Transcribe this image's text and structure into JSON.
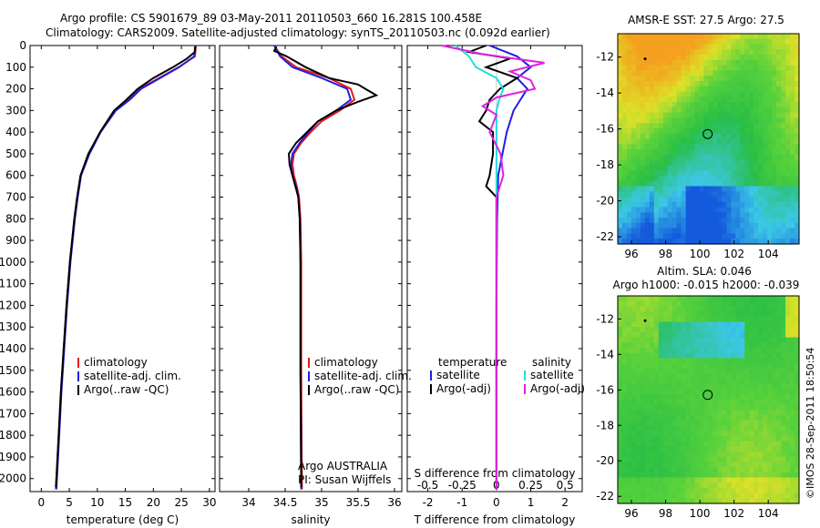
{
  "header": {
    "line1": "Argo profile: CS 5901679_89 03-May-2011 20110503_660 16.281S 100.458E",
    "line2": "Climatology: CARS2009. Satellite-adjusted climatology: synTS_20110503.nc (0.092d earlier)"
  },
  "colors": {
    "climatology": "#e41a1c",
    "satellite": "#1f1fe0",
    "argo": "#000000",
    "sat_salinity": "#22dddd",
    "argo_salinity": "#e020e0"
  },
  "chart_data": [
    {
      "type": "line",
      "id": "temperature",
      "xlabel": "temperature (deg C)",
      "xlim": [
        -2,
        31
      ],
      "ylim": [
        2060,
        0
      ],
      "xticks": [
        0,
        5,
        10,
        15,
        20,
        25,
        30
      ],
      "yticks": [
        0,
        100,
        200,
        300,
        400,
        500,
        600,
        700,
        800,
        900,
        1000,
        1100,
        1200,
        1300,
        1400,
        1500,
        1600,
        1700,
        1800,
        1900,
        2000
      ],
      "legend": [
        "climatology",
        "satellite-adj. clim.",
        "Argo(..raw -QC)"
      ],
      "series": [
        {
          "name": "climatology",
          "depth": [
            0,
            50,
            100,
            150,
            200,
            250,
            300,
            400,
            500,
            600,
            700,
            800,
            1000,
            1200,
            1400,
            1600,
            1800,
            2000,
            2050
          ],
          "values": [
            27.6,
            27.4,
            24.5,
            21.0,
            17.5,
            15.5,
            13.0,
            10.5,
            8.5,
            7.0,
            6.4,
            5.9,
            5.1,
            4.5,
            4.0,
            3.5,
            3.1,
            2.7,
            2.6
          ]
        },
        {
          "name": "satellite-adj. clim.",
          "depth": [
            0,
            50,
            100,
            150,
            200,
            250,
            300,
            400,
            500,
            600,
            700,
            800,
            1000,
            1200,
            1400,
            1600,
            1800,
            2000,
            2050
          ],
          "values": [
            27.5,
            27.3,
            24.6,
            21.2,
            17.8,
            15.8,
            13.3,
            10.6,
            8.6,
            7.1,
            6.5,
            6.0,
            5.2,
            4.6,
            4.1,
            3.6,
            3.2,
            2.8,
            2.7
          ]
        },
        {
          "name": "Argo(..raw -QC)",
          "depth": [
            5,
            30,
            60,
            100,
            150,
            200,
            250,
            300,
            400,
            500,
            600,
            700,
            800,
            1000,
            1200,
            1400,
            1600,
            1800,
            2000,
            2040
          ],
          "values": [
            27.4,
            27.4,
            26.0,
            23.5,
            20.0,
            17.2,
            15.2,
            13.0,
            10.5,
            8.4,
            7.0,
            6.4,
            5.9,
            5.1,
            4.5,
            4.0,
            3.5,
            3.1,
            2.7,
            2.6
          ]
        }
      ]
    },
    {
      "type": "line",
      "id": "salinity",
      "xlabel": "salinity",
      "xlim": [
        33.6,
        36.1
      ],
      "ylim": [
        2060,
        0
      ],
      "xticks": [
        34,
        34.5,
        35,
        35.5,
        36
      ],
      "legend": [
        "climatology",
        "satellite-adj. clim.",
        "Argo(..raw -QC)"
      ],
      "series": [
        {
          "name": "climatology",
          "depth": [
            0,
            50,
            100,
            150,
            200,
            250,
            300,
            350,
            400,
            450,
            500,
            550,
            600,
            650,
            700,
            800,
            1000,
            1500,
            2050
          ],
          "values": [
            34.35,
            34.45,
            34.65,
            35.1,
            35.4,
            35.45,
            35.25,
            35.0,
            34.85,
            34.72,
            34.62,
            34.6,
            34.62,
            34.66,
            34.69,
            34.71,
            34.72,
            34.72,
            34.73
          ]
        },
        {
          "name": "satellite-adj. clim.",
          "depth": [
            0,
            50,
            100,
            150,
            200,
            250,
            300,
            350,
            400,
            450,
            500,
            550,
            600,
            650,
            700,
            800,
            1000,
            1500,
            2050
          ],
          "values": [
            34.35,
            34.43,
            34.6,
            35.0,
            35.35,
            35.4,
            35.2,
            34.95,
            34.82,
            34.7,
            34.6,
            34.58,
            34.6,
            34.65,
            34.68,
            34.7,
            34.71,
            34.71,
            34.72
          ]
        },
        {
          "name": "Argo(..raw -QC)",
          "depth": [
            5,
            25,
            50,
            100,
            150,
            180,
            200,
            230,
            260,
            300,
            350,
            400,
            450,
            500,
            550,
            600,
            650,
            700,
            800,
            1000,
            1500,
            2040
          ],
          "values": [
            34.38,
            34.35,
            34.52,
            34.78,
            35.1,
            35.5,
            35.6,
            35.75,
            35.5,
            35.2,
            34.95,
            34.8,
            34.65,
            34.55,
            34.56,
            34.6,
            34.64,
            34.68,
            34.7,
            34.71,
            34.71,
            34.72
          ]
        }
      ],
      "annotation": [
        "Argo AUSTRALIA",
        "PI: Susan Wijffels"
      ]
    },
    {
      "type": "line",
      "id": "difference",
      "xlabel": "T difference from climatology",
      "xlabel_top": "S difference from climatology",
      "xlim": [
        -2.6,
        2.5
      ],
      "ylim": [
        2060,
        0
      ],
      "xticks": [
        -2,
        -1,
        0,
        1,
        2
      ],
      "xticks_s": [
        -0.5,
        -0.25,
        0,
        0.25,
        0.5
      ],
      "xticks_s_labels": [
        "-0.5",
        "-0.25",
        "0",
        "0.25",
        "0.5"
      ],
      "legend_temperature": {
        "title": "temperature",
        "items": [
          "satellite",
          "Argo(-adj)"
        ]
      },
      "legend_salinity": {
        "title": "salinity",
        "items": [
          "satellite",
          "Argo(-adj)"
        ]
      },
      "series": [
        {
          "name": "T satellite",
          "depth": [
            0,
            50,
            100,
            150,
            200,
            250,
            300,
            400,
            600,
            800,
            1200,
            2050
          ],
          "values": [
            -0.2,
            0.6,
            1.0,
            0.6,
            0.9,
            0.7,
            0.5,
            0.3,
            0.05,
            0.02,
            0.0,
            0.0
          ]
        },
        {
          "name": "T Argo(-adj)",
          "depth": [
            0,
            30,
            60,
            100,
            150,
            200,
            250,
            300,
            350,
            400,
            500,
            600,
            650,
            700,
            800,
            1000,
            2050
          ],
          "values": [
            -0.3,
            -0.8,
            0.4,
            -0.3,
            0.6,
            0.1,
            -0.2,
            -0.3,
            -0.5,
            -0.1,
            -0.1,
            -0.2,
            -0.3,
            0.0,
            0.0,
            0.0,
            0.0
          ]
        },
        {
          "name": "S satellite",
          "depth": [
            0,
            50,
            100,
            150,
            200,
            250,
            300,
            400,
            600,
            800,
            1200,
            2050
          ],
          "values": [
            -0.3,
            -0.2,
            -0.15,
            0.0,
            0.05,
            0.02,
            0.0,
            0.0,
            0.0,
            0.0,
            0.0,
            0.0
          ]
        },
        {
          "name": "S Argo(-adj)",
          "depth": [
            0,
            40,
            80,
            120,
            160,
            200,
            240,
            280,
            320,
            400,
            500,
            600,
            700,
            900,
            2050
          ],
          "values": [
            -0.4,
            -0.1,
            0.35,
            0.1,
            0.25,
            0.28,
            0.0,
            -0.1,
            0.0,
            -0.05,
            0.03,
            0.05,
            0.0,
            0.0,
            0.0
          ]
        }
      ]
    },
    {
      "type": "heatmap",
      "id": "sst-map",
      "title": "AMSR-E SST: 27.5 Argo: 27.5",
      "xticks": [
        96,
        98,
        100,
        102,
        104
      ],
      "yticks": [
        -12,
        -14,
        -16,
        -18,
        -20,
        -22
      ],
      "xlim": [
        95.2,
        105.8
      ],
      "ylim": [
        -22.4,
        -10.7
      ],
      "argo_position": [
        100.458,
        -16.281
      ],
      "track_position": [
        96.8,
        -12.1
      ]
    },
    {
      "type": "heatmap",
      "id": "sla-map",
      "title_line1": "Altim. SLA: 0.046",
      "title_line2": "Argo h1000: -0.015 h2000: -0.039",
      "xticks": [
        96,
        98,
        100,
        102,
        104
      ],
      "yticks": [
        -12,
        -14,
        -16,
        -18,
        -20,
        -22
      ],
      "xlim": [
        95.2,
        105.8
      ],
      "ylim": [
        -22.4,
        -10.7
      ],
      "argo_position": [
        100.458,
        -16.281
      ],
      "track_position": [
        96.8,
        -12.1
      ]
    }
  ],
  "credit": "©IMOS 28-Sep-2011 18:50:54"
}
